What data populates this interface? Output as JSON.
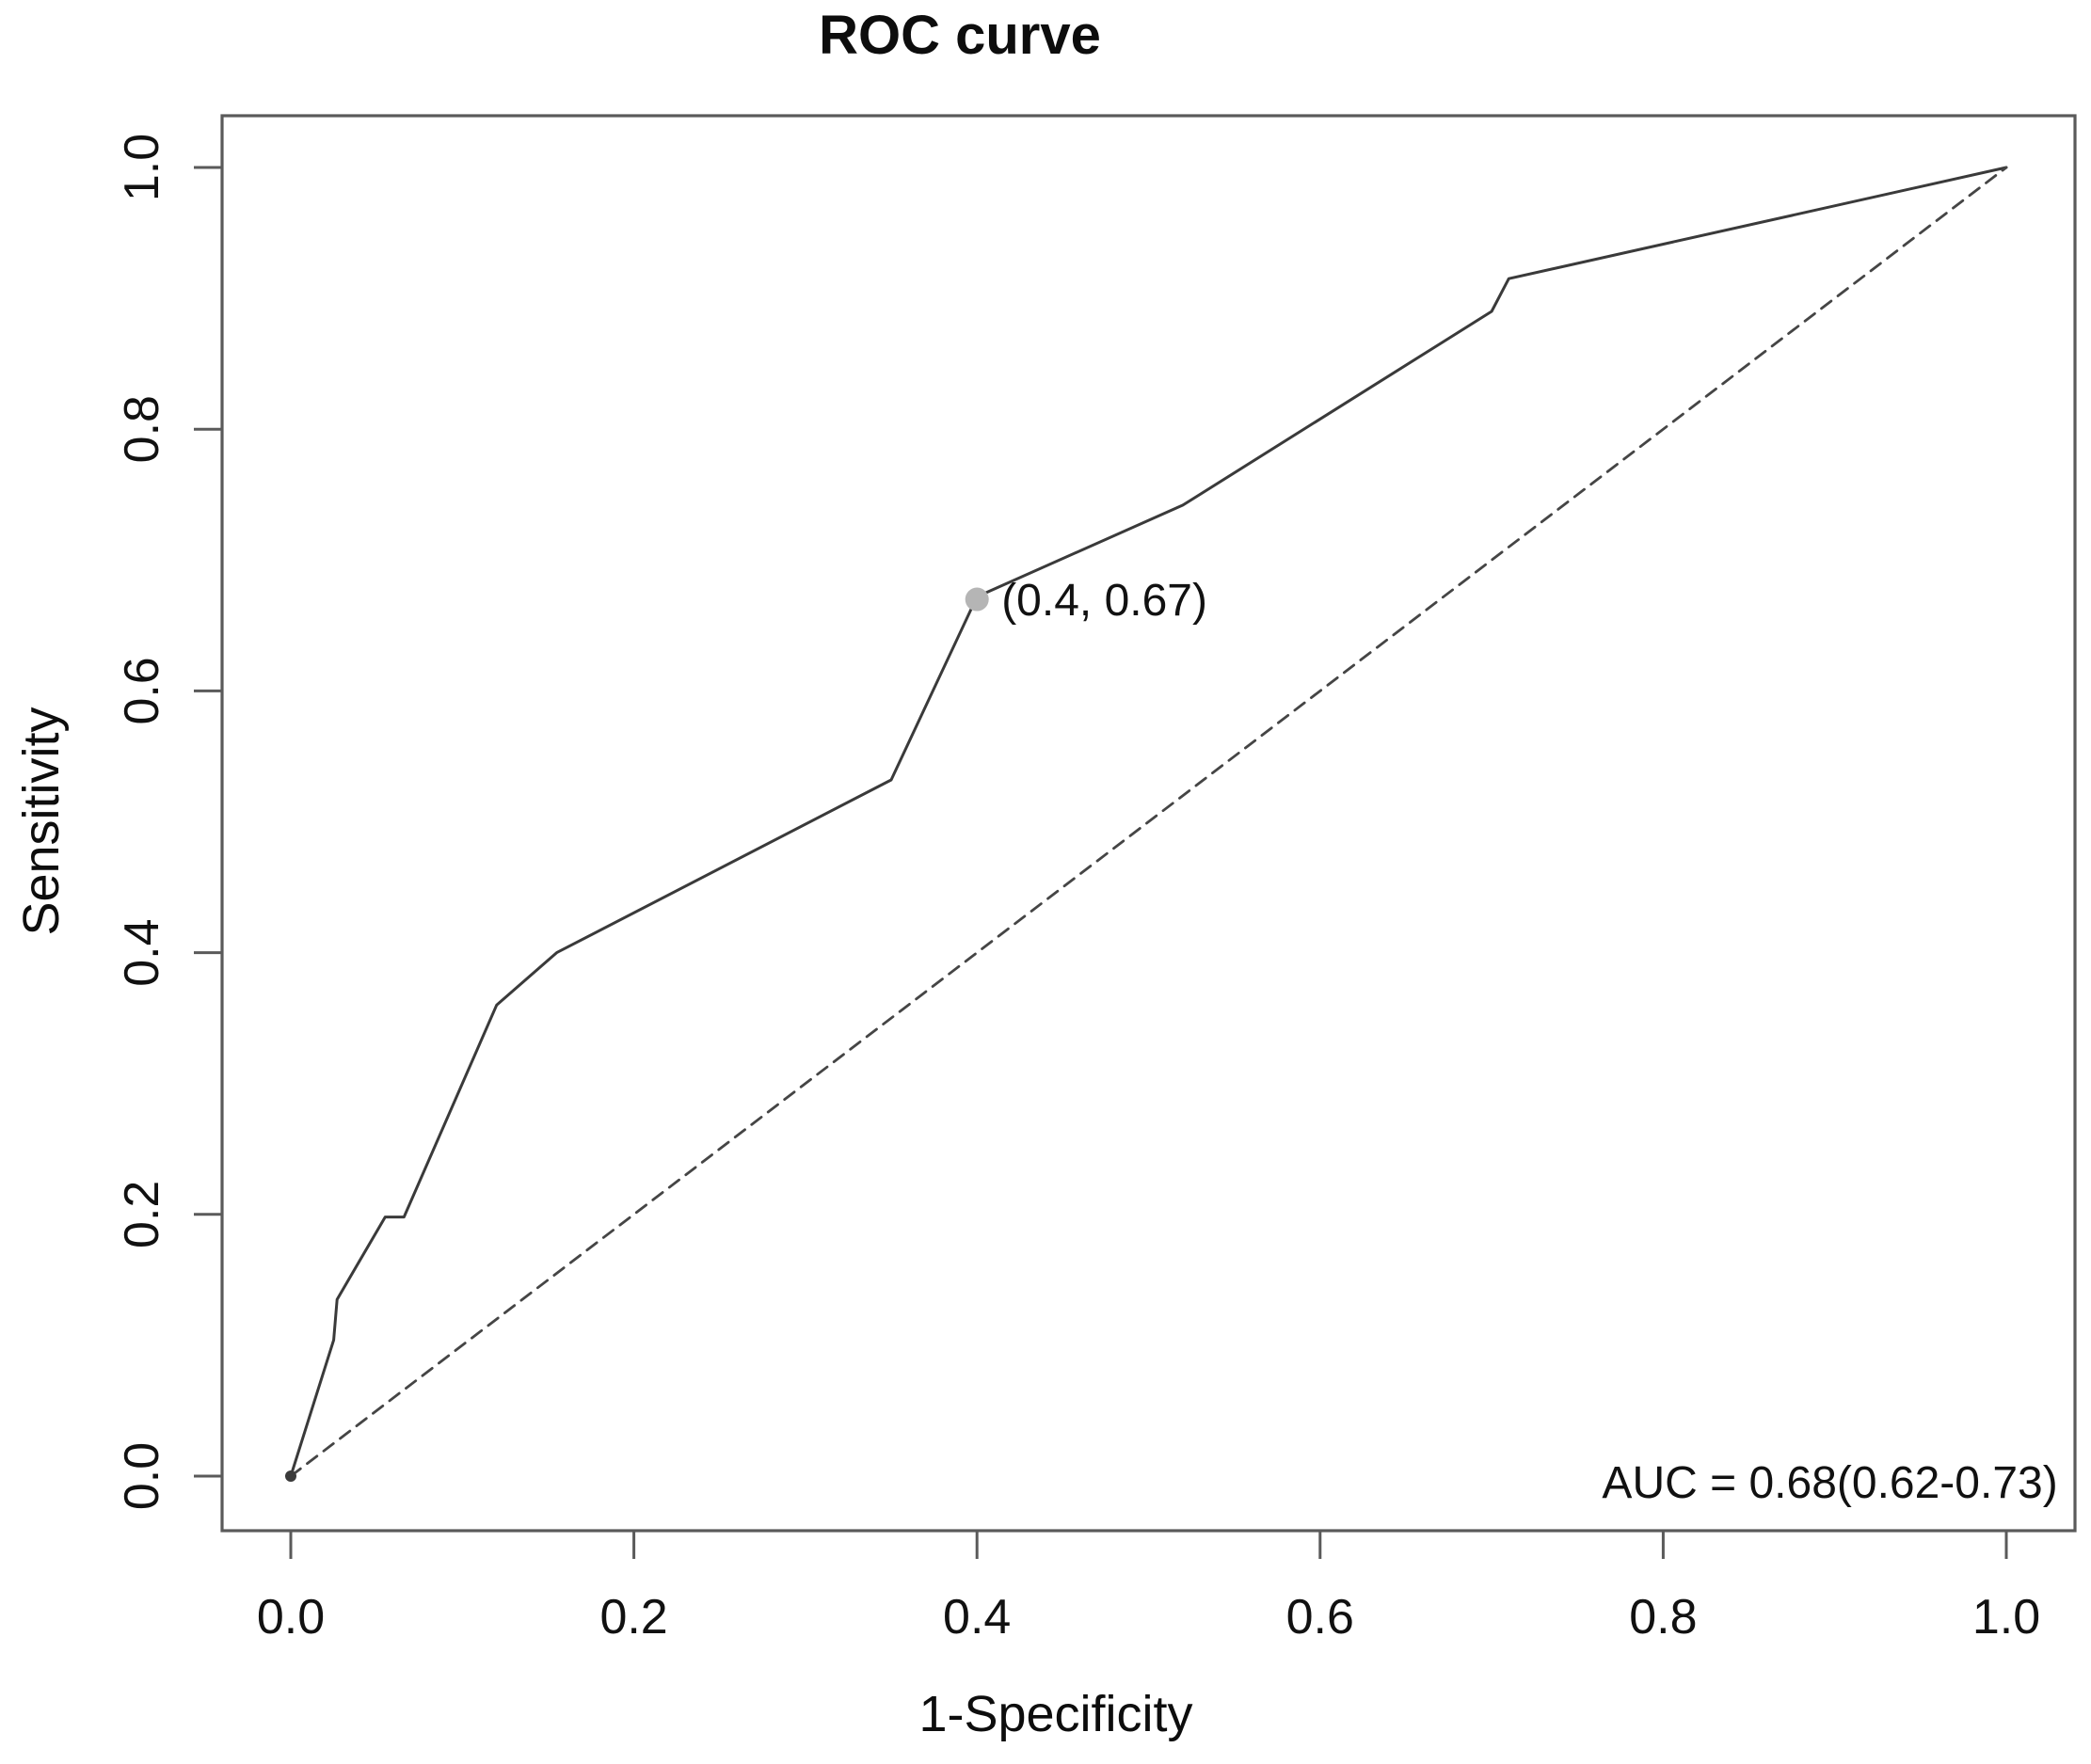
{
  "chart_data": {
    "type": "line",
    "title": "ROC curve",
    "xlabel": "1-Specificity",
    "ylabel": "Sensitivity",
    "xlim": [
      0,
      1
    ],
    "ylim": [
      0,
      1
    ],
    "grid": false,
    "legend": "none",
    "x_ticks": [
      0,
      0.2,
      0.4,
      0.6,
      0.8,
      1
    ],
    "x_tick_labels": [
      "0.0",
      "0.2",
      "0.4",
      "0.6",
      "0.8",
      "1.0"
    ],
    "y_ticks": [
      0,
      0.2,
      0.4,
      0.6,
      0.8,
      1
    ],
    "y_tick_labels": [
      "0.0",
      "0.2",
      "0.4",
      "0.6",
      "0.8",
      "1.0"
    ],
    "series": [
      {
        "name": "ROC curve",
        "line_style": "solid",
        "color": "#3a3a3a",
        "points": [
          [
            0,
            0
          ],
          [
            0.025,
            0.104
          ],
          [
            0.027,
            0.135
          ],
          [
            0.055,
            0.198
          ],
          [
            0.066,
            0.198
          ],
          [
            0.12,
            0.36
          ],
          [
            0.155,
            0.4
          ],
          [
            0.35,
            0.532
          ],
          [
            0.4,
            0.672
          ],
          [
            0.52,
            0.742
          ],
          [
            0.7,
            0.89
          ],
          [
            0.71,
            0.915
          ],
          [
            1,
            1
          ]
        ]
      },
      {
        "name": "Chance diagonal",
        "line_style": "dashed",
        "color": "#454545",
        "points": [
          [
            0,
            0
          ],
          [
            1,
            1
          ]
        ]
      }
    ],
    "marked_point": {
      "x": 0.4,
      "y": 0.67,
      "label": "(0.4, 0.67)",
      "color": "#b5b5b5"
    },
    "annotations": [
      {
        "text": "AUC = 0.68(0.62-0.73)",
        "x": 1.03,
        "y": -0.005,
        "anchor": "end"
      }
    ],
    "colors": {
      "text": "#111111",
      "axis": "#5a5a5a"
    }
  }
}
